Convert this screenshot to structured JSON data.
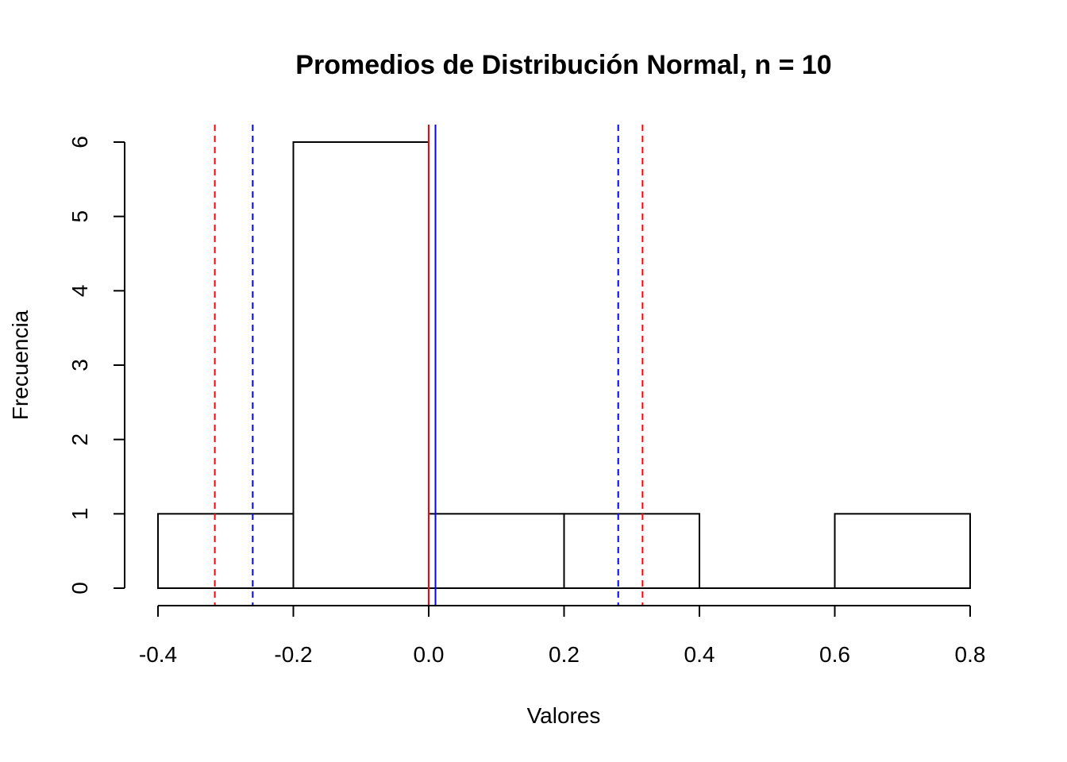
{
  "chart_data": {
    "type": "bar",
    "title": "Promedios de Distribución Normal, n = 10",
    "xlabel": "Valores",
    "ylabel": "Frecuencia",
    "xlim": [
      -0.4,
      0.8
    ],
    "ylim": [
      0,
      6
    ],
    "x_ticks": [
      "-0.4",
      "-0.2",
      "0.0",
      "0.2",
      "0.4",
      "0.6",
      "0.8"
    ],
    "y_ticks": [
      "0",
      "1",
      "2",
      "3",
      "4",
      "5",
      "6"
    ],
    "bins": [
      {
        "start": -0.4,
        "end": -0.2,
        "count": 1
      },
      {
        "start": -0.2,
        "end": 0.0,
        "count": 6
      },
      {
        "start": 0.0,
        "end": 0.2,
        "count": 1
      },
      {
        "start": 0.2,
        "end": 0.4,
        "count": 1
      },
      {
        "start": 0.4,
        "end": 0.6,
        "count": 0
      },
      {
        "start": 0.6,
        "end": 0.8,
        "count": 1
      }
    ],
    "reference_lines": [
      {
        "x": 0.0,
        "color": "#ff0000",
        "style": "solid"
      },
      {
        "x": 0.01,
        "color": "#0000ff",
        "style": "solid"
      },
      {
        "x": -0.316,
        "color": "#ff0000",
        "style": "dashed"
      },
      {
        "x": 0.316,
        "color": "#ff0000",
        "style": "dashed"
      },
      {
        "x": -0.26,
        "color": "#0000ff",
        "style": "dashed"
      },
      {
        "x": 0.28,
        "color": "#0000ff",
        "style": "dashed"
      }
    ],
    "grid": false
  }
}
